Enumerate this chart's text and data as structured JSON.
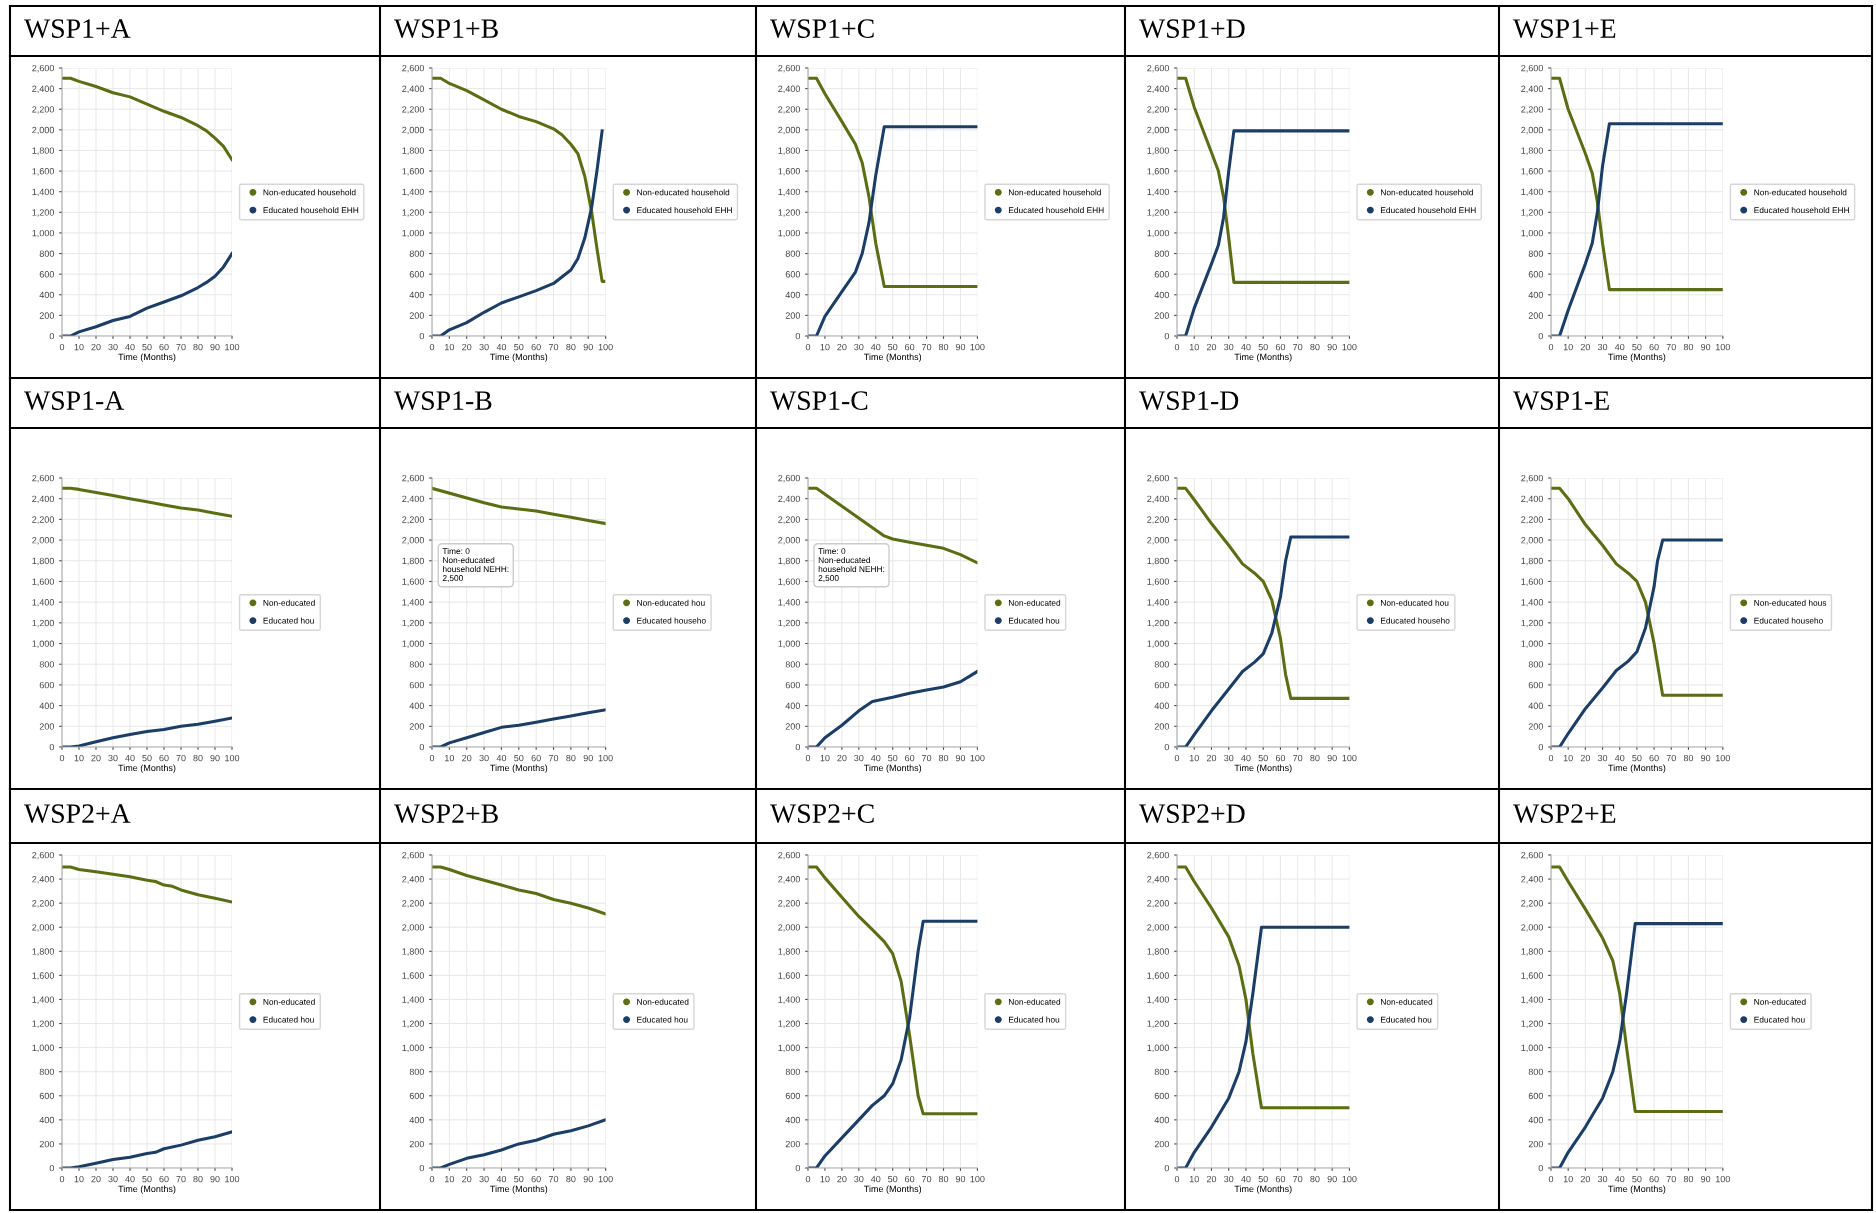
{
  "chart_data": [
    {
      "type": "line",
      "title": "WSP1+A",
      "xlabel": "Time (Months)",
      "xlim": [
        0,
        100
      ],
      "xticks": [
        0,
        10,
        20,
        30,
        40,
        50,
        60,
        70,
        80,
        90,
        100
      ],
      "ylim": [
        0,
        2600
      ],
      "yticks": [
        0,
        200,
        400,
        600,
        800,
        {
          "value": 1000,
          "label": "1,000"
        },
        {
          "value": 1200,
          "label": "1,200"
        },
        {
          "value": 1400,
          "label": "1,400"
        },
        {
          "value": 1600,
          "label": "1,600"
        },
        {
          "value": 1800,
          "label": "1,800"
        },
        {
          "value": 2000,
          "label": "2,000"
        },
        {
          "value": 2200,
          "label": "2,200"
        },
        {
          "value": 2400,
          "label": "2,400"
        },
        {
          "value": 2600,
          "label": "2,600"
        }
      ],
      "grid": true,
      "legend": "right",
      "series": [
        {
          "name": "Non-educated household",
          "color": "#5b6e14",
          "x": [
            0,
            5,
            10,
            20,
            30,
            40,
            50,
            60,
            70,
            80,
            85,
            90,
            95,
            100
          ],
          "values": [
            2500,
            2500,
            2470,
            2420,
            2360,
            2320,
            2250,
            2180,
            2120,
            2040,
            1990,
            1920,
            1840,
            1710
          ]
        },
        {
          "name": "Educated household EHH",
          "color": "#1b3d66",
          "x": [
            0,
            5,
            10,
            20,
            30,
            40,
            50,
            60,
            70,
            80,
            85,
            90,
            95,
            100
          ],
          "values": [
            0,
            0,
            40,
            90,
            150,
            190,
            270,
            330,
            390,
            470,
            520,
            580,
            670,
            800
          ]
        }
      ]
    },
    {
      "type": "line",
      "title": "WSP1+B",
      "xlabel": "Time (Months)",
      "xlim": [
        0,
        100
      ],
      "xticks": [
        0,
        10,
        20,
        30,
        40,
        50,
        60,
        70,
        80,
        90,
        100
      ],
      "ylim": [
        0,
        2600
      ],
      "yticks": [
        0,
        200,
        400,
        600,
        800,
        {
          "value": 1000,
          "label": "1,000"
        },
        {
          "value": 1200,
          "label": "1,200"
        },
        {
          "value": 1400,
          "label": "1,400"
        },
        {
          "value": 1600,
          "label": "1,600"
        },
        {
          "value": 1800,
          "label": "1,800"
        },
        {
          "value": 2000,
          "label": "2,000"
        },
        {
          "value": 2200,
          "label": "2,200"
        },
        {
          "value": 2400,
          "label": "2,400"
        },
        {
          "value": 2600,
          "label": "2,600"
        }
      ],
      "grid": true,
      "legend": "right",
      "series": [
        {
          "name": "Non-educated household",
          "color": "#5b6e14",
          "x": [
            0,
            5,
            10,
            20,
            30,
            40,
            50,
            60,
            70,
            75,
            80,
            84,
            88,
            92,
            95,
            98,
            99
          ],
          "values": [
            2500,
            2500,
            2450,
            2380,
            2290,
            2200,
            2130,
            2080,
            2010,
            1950,
            1860,
            1770,
            1550,
            1200,
            850,
            530,
            530
          ]
        },
        {
          "name": "Educated household EHH",
          "color": "#1b3d66",
          "x": [
            0,
            5,
            10,
            20,
            30,
            40,
            50,
            60,
            70,
            80,
            84,
            88,
            92,
            95,
            98
          ],
          "values": [
            0,
            0,
            60,
            130,
            230,
            320,
            380,
            440,
            510,
            640,
            750,
            950,
            1250,
            1600,
            1990
          ]
        }
      ]
    },
    {
      "type": "line",
      "title": "WSP1+C",
      "xlabel": "Time (Months)",
      "xlim": [
        0,
        100
      ],
      "xticks": [
        0,
        10,
        20,
        30,
        40,
        50,
        60,
        70,
        80,
        90,
        100
      ],
      "ylim": [
        0,
        2600
      ],
      "yticks": [
        0,
        200,
        400,
        600,
        800,
        {
          "value": 1000,
          "label": "1,000"
        },
        {
          "value": 1200,
          "label": "1,200"
        },
        {
          "value": 1400,
          "label": "1,400"
        },
        {
          "value": 1600,
          "label": "1,600"
        },
        {
          "value": 1800,
          "label": "1,800"
        },
        {
          "value": 2000,
          "label": "2,000"
        },
        {
          "value": 2200,
          "label": "2,200"
        },
        {
          "value": 2400,
          "label": "2,400"
        },
        {
          "value": 2600,
          "label": "2,600"
        }
      ],
      "grid": true,
      "legend": "right",
      "series": [
        {
          "name": "Non-educated household",
          "color": "#5b6e14",
          "x": [
            0,
            5,
            10,
            20,
            28,
            32,
            36,
            40,
            45,
            100
          ],
          "values": [
            2500,
            2500,
            2350,
            2080,
            1860,
            1680,
            1350,
            900,
            480,
            480
          ]
        },
        {
          "name": "Educated household EHH",
          "color": "#1b3d66",
          "x": [
            0,
            5,
            10,
            20,
            28,
            32,
            36,
            40,
            45,
            100
          ],
          "values": [
            0,
            0,
            190,
            430,
            620,
            800,
            1100,
            1560,
            2030,
            2030
          ]
        }
      ]
    },
    {
      "type": "line",
      "title": "WSP1+D",
      "xlabel": "Time (Months)",
      "xlim": [
        0,
        100
      ],
      "xticks": [
        0,
        10,
        20,
        30,
        40,
        50,
        60,
        70,
        80,
        90,
        100
      ],
      "ylim": [
        0,
        2600
      ],
      "yticks": [
        0,
        200,
        400,
        600,
        800,
        {
          "value": 1000,
          "label": "1,000"
        },
        {
          "value": 1200,
          "label": "1,200"
        },
        {
          "value": 1400,
          "label": "1,400"
        },
        {
          "value": 1600,
          "label": "1,600"
        },
        {
          "value": 1800,
          "label": "1,800"
        },
        {
          "value": 2000,
          "label": "2,000"
        },
        {
          "value": 2200,
          "label": "2,200"
        },
        {
          "value": 2400,
          "label": "2,400"
        },
        {
          "value": 2600,
          "label": "2,600"
        }
      ],
      "grid": true,
      "legend": "right",
      "series": [
        {
          "name": "Non-educated household",
          "color": "#5b6e14",
          "x": [
            0,
            5,
            10,
            20,
            24,
            27,
            30,
            33,
            100
          ],
          "values": [
            2500,
            2500,
            2220,
            1780,
            1600,
            1350,
            950,
            520,
            520
          ]
        },
        {
          "name": "Educated household EHH",
          "color": "#1b3d66",
          "x": [
            0,
            5,
            10,
            20,
            24,
            27,
            30,
            33,
            100
          ],
          "values": [
            0,
            0,
            270,
            700,
            880,
            1150,
            1600,
            1990,
            1990
          ]
        }
      ]
    },
    {
      "type": "line",
      "title": "WSP1+E",
      "xlabel": "Time (Months)",
      "xlim": [
        0,
        100
      ],
      "xticks": [
        0,
        10,
        20,
        30,
        40,
        50,
        60,
        70,
        80,
        90,
        100
      ],
      "ylim": [
        0,
        2600
      ],
      "yticks": [
        0,
        200,
        400,
        600,
        800,
        {
          "value": 1000,
          "label": "1,000"
        },
        {
          "value": 1200,
          "label": "1,200"
        },
        {
          "value": 1400,
          "label": "1,400"
        },
        {
          "value": 1600,
          "label": "1,600"
        },
        {
          "value": 1800,
          "label": "1,800"
        },
        {
          "value": 2000,
          "label": "2,000"
        },
        {
          "value": 2200,
          "label": "2,200"
        },
        {
          "value": 2400,
          "label": "2,400"
        },
        {
          "value": 2600,
          "label": "2,600"
        }
      ],
      "grid": true,
      "legend": "right",
      "series": [
        {
          "name": "Non-educated household",
          "color": "#5b6e14",
          "x": [
            0,
            5,
            10,
            20,
            24,
            27,
            30,
            34,
            100
          ],
          "values": [
            2500,
            2500,
            2200,
            1770,
            1580,
            1300,
            900,
            450,
            450
          ]
        },
        {
          "name": "Educated household EHH",
          "color": "#1b3d66",
          "x": [
            0,
            5,
            10,
            20,
            24,
            27,
            30,
            34,
            100
          ],
          "values": [
            0,
            0,
            250,
            700,
            900,
            1200,
            1650,
            2060,
            2060
          ]
        }
      ]
    },
    {
      "type": "line",
      "title": "WSP1-A",
      "xlabel": "Time (Months)",
      "xlim": [
        0,
        100
      ],
      "xticks": [
        0,
        10,
        20,
        30,
        40,
        50,
        60,
        70,
        80,
        90,
        100
      ],
      "ylim": [
        0,
        2600
      ],
      "yticks": [
        0,
        200,
        400,
        600,
        800,
        {
          "value": 1000,
          "label": "1,000"
        },
        {
          "value": 1200,
          "label": "1,200"
        },
        {
          "value": 1400,
          "label": "1,400"
        },
        {
          "value": 1600,
          "label": "1,600"
        },
        {
          "value": 1800,
          "label": "1,800"
        },
        {
          "value": 2000,
          "label": "2,000"
        },
        {
          "value": 2200,
          "label": "2,200"
        },
        {
          "value": 2400,
          "label": "2,400"
        },
        {
          "value": 2600,
          "label": "2,600"
        }
      ],
      "grid": true,
      "legend": "right",
      "series": [
        {
          "name": "Non-educated",
          "color": "#5b6e14",
          "x": [
            0,
            5,
            10,
            20,
            30,
            40,
            50,
            60,
            70,
            80,
            90,
            100
          ],
          "values": [
            2500,
            2500,
            2490,
            2460,
            2430,
            2400,
            2370,
            2340,
            2310,
            2290,
            2260,
            2230
          ]
        },
        {
          "name": "Educated hou",
          "color": "#1b3d66",
          "x": [
            0,
            5,
            10,
            20,
            30,
            40,
            50,
            60,
            70,
            80,
            90,
            100
          ],
          "values": [
            0,
            0,
            10,
            50,
            90,
            120,
            150,
            170,
            200,
            220,
            250,
            280
          ]
        }
      ]
    },
    {
      "type": "line",
      "title": "WSP1-B",
      "xlabel": "Time (Months)",
      "xlim": [
        0,
        100
      ],
      "xticks": [
        0,
        10,
        20,
        30,
        40,
        50,
        60,
        70,
        80,
        90,
        100
      ],
      "ylim": [
        0,
        2600
      ],
      "yticks": [
        0,
        200,
        400,
        600,
        800,
        {
          "value": 1000,
          "label": "1,000"
        },
        {
          "value": 1200,
          "label": "1,200"
        },
        {
          "value": 1400,
          "label": "1,400"
        },
        {
          "value": 1600,
          "label": "1,600"
        },
        {
          "value": 1800,
          "label": "1,800"
        },
        {
          "value": 2000,
          "label": "2,000"
        },
        {
          "value": 2200,
          "label": "2,200"
        },
        {
          "value": 2400,
          "label": "2,400"
        },
        {
          "value": 2600,
          "label": "2,600"
        }
      ],
      "grid": true,
      "legend": "right",
      "annotations": [
        "Time: 0\nNon-educated\nhousehold NEHH:\n2,500"
      ],
      "series": [
        {
          "name": "Non-educated hou",
          "color": "#5b6e14",
          "x": [
            0,
            30,
            40,
            50,
            60,
            70,
            80,
            90,
            100
          ],
          "values": [
            2500,
            2360,
            2320,
            2300,
            2280,
            2250,
            2220,
            2190,
            2160
          ]
        },
        {
          "name": "Educated househo",
          "color": "#1b3d66",
          "x": [
            0,
            5,
            10,
            20,
            30,
            40,
            50,
            60,
            70,
            80,
            90,
            100
          ],
          "values": [
            0,
            0,
            40,
            90,
            140,
            190,
            210,
            240,
            270,
            300,
            330,
            360
          ]
        }
      ]
    },
    {
      "type": "line",
      "title": "WSP1-C",
      "xlabel": "Time (Months)",
      "xlim": [
        0,
        100
      ],
      "xticks": [
        0,
        10,
        20,
        30,
        40,
        50,
        60,
        70,
        80,
        90,
        100
      ],
      "ylim": [
        0,
        2600
      ],
      "yticks": [
        0,
        200,
        400,
        600,
        800,
        {
          "value": 1000,
          "label": "1,000"
        },
        {
          "value": 1200,
          "label": "1,200"
        },
        {
          "value": 1400,
          "label": "1,400"
        },
        {
          "value": 1600,
          "label": "1,600"
        },
        {
          "value": 1800,
          "label": "1,800"
        },
        {
          "value": 2000,
          "label": "2,000"
        },
        {
          "value": 2200,
          "label": "2,200"
        },
        {
          "value": 2400,
          "label": "2,400"
        },
        {
          "value": 2600,
          "label": "2,600"
        }
      ],
      "grid": true,
      "legend": "right",
      "annotations": [
        "Time: 0\nNon-educated\nhousehold NEHH:\n2,500"
      ],
      "series": [
        {
          "name": "Non-educated",
          "color": "#5b6e14",
          "x": [
            0,
            5,
            45,
            50,
            60,
            70,
            80,
            90,
            100
          ],
          "values": [
            2500,
            2500,
            2040,
            2010,
            1980,
            1950,
            1920,
            1860,
            1780
          ]
        },
        {
          "name": "Educated hou",
          "color": "#1b3d66",
          "x": [
            0,
            5,
            10,
            20,
            30,
            38,
            50,
            60,
            70,
            80,
            90,
            100
          ],
          "values": [
            0,
            0,
            90,
            210,
            350,
            440,
            480,
            520,
            550,
            580,
            630,
            730
          ]
        }
      ]
    },
    {
      "type": "line",
      "title": "WSP1-D",
      "xlabel": "Time (Months)",
      "xlim": [
        0,
        100
      ],
      "xticks": [
        0,
        10,
        20,
        30,
        40,
        50,
        60,
        70,
        80,
        90,
        100
      ],
      "ylim": [
        0,
        2600
      ],
      "yticks": [
        0,
        200,
        400,
        600,
        800,
        {
          "value": 1000,
          "label": "1,000"
        },
        {
          "value": 1200,
          "label": "1,200"
        },
        {
          "value": 1400,
          "label": "1,400"
        },
        {
          "value": 1600,
          "label": "1,600"
        },
        {
          "value": 1800,
          "label": "1,800"
        },
        {
          "value": 2000,
          "label": "2,000"
        },
        {
          "value": 2200,
          "label": "2,200"
        },
        {
          "value": 2400,
          "label": "2,400"
        },
        {
          "value": 2600,
          "label": "2,600"
        }
      ],
      "grid": true,
      "legend": "right",
      "series": [
        {
          "name": "Non-educated hou",
          "color": "#5b6e14",
          "x": [
            0,
            5,
            10,
            20,
            30,
            38,
            45,
            50,
            55,
            60,
            63,
            66,
            100
          ],
          "values": [
            2500,
            2500,
            2390,
            2160,
            1950,
            1770,
            1680,
            1600,
            1420,
            1050,
            700,
            470,
            470
          ]
        },
        {
          "name": "Educated househo",
          "color": "#1b3d66",
          "x": [
            0,
            5,
            10,
            20,
            30,
            38,
            45,
            50,
            55,
            60,
            63,
            66,
            100
          ],
          "values": [
            0,
            0,
            120,
            350,
            560,
            730,
            820,
            900,
            1100,
            1450,
            1800,
            2030,
            2030
          ]
        }
      ]
    },
    {
      "type": "line",
      "title": "WSP1-E",
      "xlabel": "Time (Months)",
      "xlim": [
        0,
        100
      ],
      "xticks": [
        0,
        10,
        20,
        30,
        40,
        50,
        60,
        70,
        80,
        90,
        100
      ],
      "ylim": [
        0,
        2600
      ],
      "yticks": [
        0,
        200,
        400,
        600,
        800,
        {
          "value": 1000,
          "label": "1,000"
        },
        {
          "value": 1200,
          "label": "1,200"
        },
        {
          "value": 1400,
          "label": "1,400"
        },
        {
          "value": 1600,
          "label": "1,600"
        },
        {
          "value": 1800,
          "label": "1,800"
        },
        {
          "value": 2000,
          "label": "2,000"
        },
        {
          "value": 2200,
          "label": "2,200"
        },
        {
          "value": 2400,
          "label": "2,400"
        },
        {
          "value": 2600,
          "label": "2,600"
        }
      ],
      "grid": true,
      "legend": "right",
      "series": [
        {
          "name": "Non-educated hous",
          "color": "#5b6e14",
          "x": [
            0,
            5,
            10,
            20,
            30,
            38,
            45,
            50,
            55,
            60,
            65,
            100
          ],
          "values": [
            2500,
            2500,
            2400,
            2150,
            1950,
            1770,
            1680,
            1600,
            1400,
            1000,
            500,
            500
          ]
        },
        {
          "name": "Educated househo",
          "color": "#1b3d66",
          "x": [
            0,
            5,
            10,
            20,
            30,
            38,
            45,
            50,
            55,
            60,
            62,
            65,
            100
          ],
          "values": [
            0,
            0,
            130,
            370,
            570,
            740,
            830,
            920,
            1150,
            1550,
            1800,
            2000,
            2000
          ]
        }
      ]
    },
    {
      "type": "line",
      "title": "WSP2+A",
      "xlabel": "Time (Months)",
      "xlim": [
        0,
        100
      ],
      "xticks": [
        0,
        10,
        20,
        30,
        40,
        50,
        60,
        70,
        80,
        90,
        100
      ],
      "ylim": [
        0,
        2600
      ],
      "yticks": [
        0,
        200,
        400,
        600,
        800,
        {
          "value": 1000,
          "label": "1,000"
        },
        {
          "value": 1200,
          "label": "1,200"
        },
        {
          "value": 1400,
          "label": "1,400"
        },
        {
          "value": 1600,
          "label": "1,600"
        },
        {
          "value": 1800,
          "label": "1,800"
        },
        {
          "value": 2000,
          "label": "2,000"
        },
        {
          "value": 2200,
          "label": "2,200"
        },
        {
          "value": 2400,
          "label": "2,400"
        },
        {
          "value": 2600,
          "label": "2,600"
        }
      ],
      "grid": true,
      "legend": "right",
      "series": [
        {
          "name": "Non-educated",
          "color": "#5b6e14",
          "x": [
            0,
            5,
            10,
            20,
            30,
            40,
            50,
            55,
            60,
            65,
            70,
            80,
            90,
            100
          ],
          "values": [
            2500,
            2500,
            2480,
            2460,
            2440,
            2420,
            2390,
            2380,
            2350,
            2340,
            2310,
            2270,
            2240,
            2210
          ]
        },
        {
          "name": "Educated hou",
          "color": "#1b3d66",
          "x": [
            0,
            5,
            10,
            20,
            30,
            40,
            50,
            55,
            60,
            70,
            80,
            90,
            100
          ],
          "values": [
            0,
            0,
            10,
            40,
            70,
            90,
            120,
            130,
            160,
            190,
            230,
            260,
            300
          ]
        }
      ]
    },
    {
      "type": "line",
      "title": "WSP2+B",
      "xlabel": "Time (Months)",
      "xlim": [
        0,
        100
      ],
      "xticks": [
        0,
        10,
        20,
        30,
        40,
        50,
        60,
        70,
        80,
        90,
        100
      ],
      "ylim": [
        0,
        2600
      ],
      "yticks": [
        0,
        200,
        400,
        600,
        800,
        {
          "value": 1000,
          "label": "1,000"
        },
        {
          "value": 1200,
          "label": "1,200"
        },
        {
          "value": 1400,
          "label": "1,400"
        },
        {
          "value": 1600,
          "label": "1,600"
        },
        {
          "value": 1800,
          "label": "1,800"
        },
        {
          "value": 2000,
          "label": "2,000"
        },
        {
          "value": 2200,
          "label": "2,200"
        },
        {
          "value": 2400,
          "label": "2,400"
        },
        {
          "value": 2600,
          "label": "2,600"
        }
      ],
      "grid": true,
      "legend": "right",
      "series": [
        {
          "name": "Non-educated",
          "color": "#5b6e14",
          "x": [
            0,
            5,
            10,
            20,
            30,
            40,
            50,
            60,
            70,
            80,
            90,
            100
          ],
          "values": [
            2500,
            2500,
            2480,
            2430,
            2390,
            2350,
            2310,
            2280,
            2230,
            2200,
            2160,
            2110
          ]
        },
        {
          "name": "Educated hou",
          "color": "#1b3d66",
          "x": [
            0,
            5,
            10,
            20,
            30,
            40,
            50,
            60,
            70,
            80,
            90,
            100
          ],
          "values": [
            0,
            0,
            30,
            80,
            110,
            150,
            200,
            230,
            280,
            310,
            350,
            400
          ]
        }
      ]
    },
    {
      "type": "line",
      "title": "WSP2+C",
      "xlabel": "Time (Months)",
      "xlim": [
        0,
        100
      ],
      "xticks": [
        0,
        10,
        20,
        30,
        40,
        50,
        60,
        70,
        80,
        90,
        100
      ],
      "ylim": [
        0,
        2600
      ],
      "yticks": [
        0,
        200,
        400,
        600,
        800,
        {
          "value": 1000,
          "label": "1,000"
        },
        {
          "value": 1200,
          "label": "1,200"
        },
        {
          "value": 1400,
          "label": "1,400"
        },
        {
          "value": 1600,
          "label": "1,600"
        },
        {
          "value": 1800,
          "label": "1,800"
        },
        {
          "value": 2000,
          "label": "2,000"
        },
        {
          "value": 2200,
          "label": "2,200"
        },
        {
          "value": 2400,
          "label": "2,400"
        },
        {
          "value": 2600,
          "label": "2,600"
        }
      ],
      "grid": true,
      "legend": "right",
      "series": [
        {
          "name": "Non-educated",
          "color": "#5b6e14",
          "x": [
            0,
            5,
            10,
            20,
            30,
            38,
            45,
            50,
            55,
            60,
            65,
            68,
            100
          ],
          "values": [
            2500,
            2500,
            2410,
            2250,
            2090,
            1980,
            1880,
            1780,
            1550,
            1100,
            600,
            450,
            450
          ]
        },
        {
          "name": "Educated hou",
          "color": "#1b3d66",
          "x": [
            0,
            5,
            10,
            20,
            30,
            38,
            45,
            50,
            55,
            60,
            65,
            68,
            100
          ],
          "values": [
            0,
            0,
            100,
            250,
            400,
            520,
            600,
            700,
            900,
            1250,
            1800,
            2050,
            2050
          ]
        }
      ]
    },
    {
      "type": "line",
      "title": "WSP2+D",
      "xlabel": "Time (Months)",
      "xlim": [
        0,
        100
      ],
      "xticks": [
        0,
        10,
        20,
        30,
        40,
        50,
        60,
        70,
        80,
        90,
        100
      ],
      "ylim": [
        0,
        2600
      ],
      "yticks": [
        0,
        200,
        400,
        600,
        800,
        {
          "value": 1000,
          "label": "1,000"
        },
        {
          "value": 1200,
          "label": "1,200"
        },
        {
          "value": 1400,
          "label": "1,400"
        },
        {
          "value": 1600,
          "label": "1,600"
        },
        {
          "value": 1800,
          "label": "1,800"
        },
        {
          "value": 2000,
          "label": "2,000"
        },
        {
          "value": 2200,
          "label": "2,200"
        },
        {
          "value": 2400,
          "label": "2,400"
        },
        {
          "value": 2600,
          "label": "2,600"
        }
      ],
      "grid": true,
      "legend": "right",
      "series": [
        {
          "name": "Non-educated",
          "color": "#5b6e14",
          "x": [
            0,
            5,
            10,
            20,
            30,
            36,
            40,
            44,
            49,
            100
          ],
          "values": [
            2500,
            2500,
            2380,
            2160,
            1920,
            1680,
            1400,
            950,
            500,
            500
          ]
        },
        {
          "name": "Educated hou",
          "color": "#1b3d66",
          "x": [
            0,
            5,
            10,
            20,
            30,
            36,
            40,
            44,
            49,
            100
          ],
          "values": [
            0,
            0,
            130,
            340,
            580,
            800,
            1050,
            1450,
            2000,
            2000
          ]
        }
      ]
    },
    {
      "type": "line",
      "title": "WSP2+E",
      "xlabel": "Time (Months)",
      "xlim": [
        0,
        100
      ],
      "xticks": [
        0,
        10,
        20,
        30,
        40,
        50,
        60,
        70,
        80,
        90,
        100
      ],
      "ylim": [
        0,
        2600
      ],
      "yticks": [
        0,
        200,
        400,
        600,
        800,
        {
          "value": 1000,
          "label": "1,000"
        },
        {
          "value": 1200,
          "label": "1,200"
        },
        {
          "value": 1400,
          "label": "1,400"
        },
        {
          "value": 1600,
          "label": "1,600"
        },
        {
          "value": 1800,
          "label": "1,800"
        },
        {
          "value": 2000,
          "label": "2,000"
        },
        {
          "value": 2200,
          "label": "2,200"
        },
        {
          "value": 2400,
          "label": "2,400"
        },
        {
          "value": 2600,
          "label": "2,600"
        }
      ],
      "grid": true,
      "legend": "right",
      "series": [
        {
          "name": "Non-educated",
          "color": "#5b6e14",
          "x": [
            0,
            5,
            10,
            20,
            30,
            36,
            40,
            44,
            49,
            100
          ],
          "values": [
            2500,
            2500,
            2380,
            2150,
            1910,
            1720,
            1450,
            1000,
            470,
            470
          ]
        },
        {
          "name": "Educated hou",
          "color": "#1b3d66",
          "x": [
            0,
            5,
            10,
            20,
            30,
            36,
            40,
            44,
            49,
            100
          ],
          "values": [
            0,
            0,
            130,
            340,
            580,
            800,
            1050,
            1450,
            2030,
            2030
          ]
        }
      ]
    }
  ]
}
